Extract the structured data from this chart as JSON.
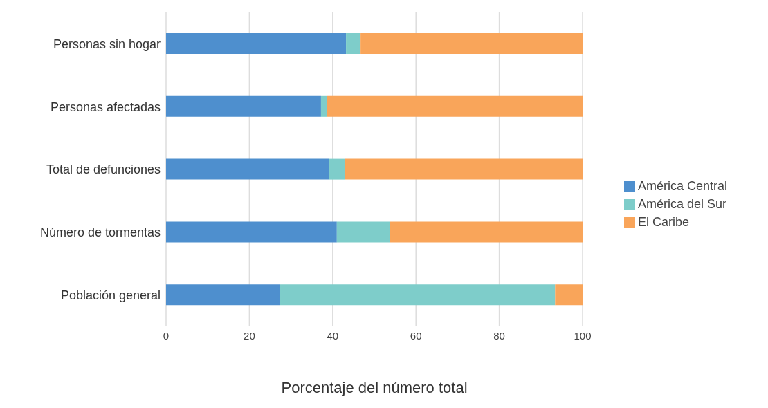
{
  "chart_data": {
    "type": "bar",
    "orientation": "horizontal",
    "stacked": true,
    "xlabel": "Porcentaje del número total",
    "categories": [
      "Personas sin hogar",
      "Personas afectadas",
      "Total de defunciones",
      "Número de tormentas",
      "Población general"
    ],
    "series": [
      {
        "name": "América Central",
        "color": "#4e8fce",
        "values": [
          43.2,
          37.2,
          39.1,
          41.0,
          27.4
        ]
      },
      {
        "name": "América del Sur",
        "color": "#7ecdca",
        "values": [
          3.5,
          1.5,
          3.8,
          12.7,
          66.0
        ]
      },
      {
        "name": "El Caribe",
        "color": "#f9a55a",
        "values": [
          53.3,
          61.3,
          57.1,
          46.3,
          6.6
        ]
      }
    ],
    "xlim": [
      0,
      100
    ],
    "xticks": [
      0,
      20,
      40,
      60,
      80,
      100
    ],
    "grid": "x",
    "legend": "right"
  }
}
